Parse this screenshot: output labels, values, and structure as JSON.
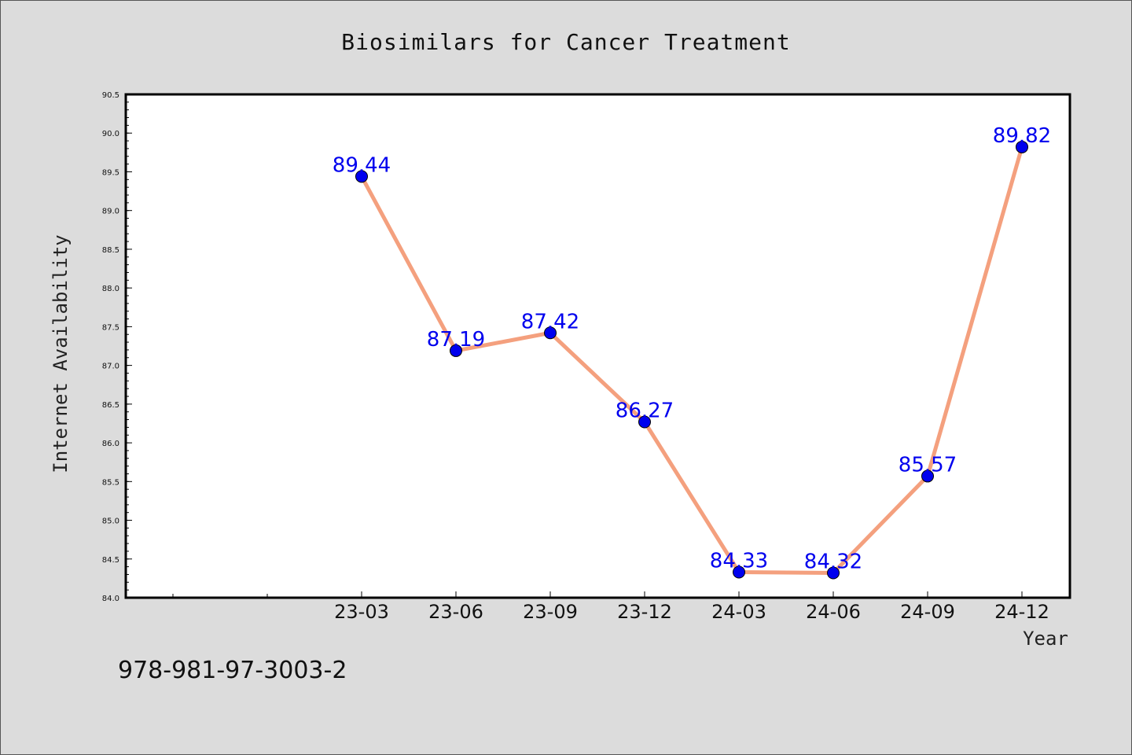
{
  "chart_data": {
    "type": "line",
    "title": "Biosimilars for Cancer Treatment",
    "xlabel": "Year",
    "ylabel": "Internet Availability",
    "categories": [
      "23-03",
      "23-06",
      "23-09",
      "23-12",
      "24-03",
      "24-06",
      "24-09",
      "24-12"
    ],
    "values": [
      89.44,
      87.19,
      87.42,
      86.27,
      84.33,
      84.32,
      85.57,
      89.82
    ],
    "data_labels": [
      "89.44",
      "87.19",
      "87.42",
      "86.27",
      "84.33",
      "84.32",
      "85.57",
      "89.82"
    ],
    "ylim": [
      84.0,
      90.5
    ],
    "yticks": [
      "84.0",
      "84.5",
      "85.0",
      "85.5",
      "86.0",
      "86.5",
      "87.0",
      "87.5",
      "88.0",
      "88.5",
      "89.0",
      "89.5",
      "90.0",
      "90.5"
    ],
    "grid": false,
    "line_color": "#f4a07e",
    "marker_color": "#0000ee",
    "label_color": "#0000ee"
  },
  "annotation": {
    "isbn": "978-981-97-3003-2"
  }
}
